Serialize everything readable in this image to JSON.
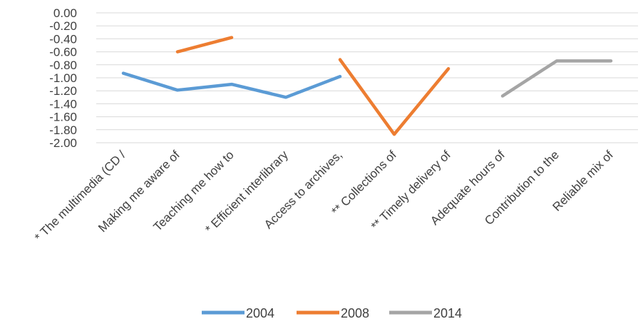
{
  "chart_data": {
    "type": "line",
    "title": "",
    "xlabel": "",
    "ylabel": "",
    "ylim": [
      -2.0,
      0.0
    ],
    "y_ticks": [
      "0.00",
      "-0.20",
      "-0.40",
      "-0.60",
      "-0.80",
      "-1.00",
      "-1.20",
      "-1.40",
      "-1.60",
      "-1.80",
      "-2.00"
    ],
    "grid": "horizontal",
    "legend_position": "bottom",
    "categories": [
      "* The multimedia (CD /",
      "Making me aware of",
      "Teaching me how to",
      "* Efficient interlibrary",
      "Access to archives,",
      "** Collections of",
      "** Timely delivery of",
      "Adequate hours of",
      "Contribution to the",
      "Reliable mix of"
    ],
    "series": [
      {
        "name": "2004",
        "color": "#5B9BD5",
        "values": [
          -0.93,
          -1.19,
          -1.1,
          -1.3,
          -0.98,
          null,
          null,
          null,
          null,
          null
        ]
      },
      {
        "name": "2008",
        "color": "#ED7D31",
        "values": [
          null,
          -0.6,
          -0.38,
          null,
          -0.72,
          -1.87,
          -0.86,
          null,
          null,
          null
        ]
      },
      {
        "name": "2014",
        "color": "#A5A5A5",
        "values": [
          null,
          null,
          null,
          null,
          null,
          null,
          null,
          -1.28,
          -0.74,
          -0.74
        ]
      }
    ]
  }
}
